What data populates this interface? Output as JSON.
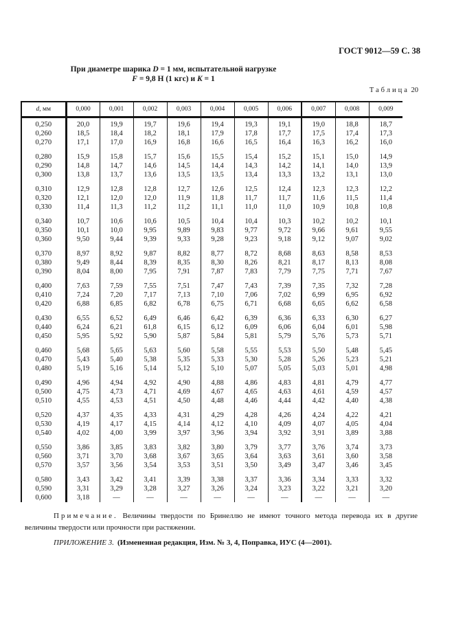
{
  "header": {
    "gost": "ГОСТ 9012—59 С. 38"
  },
  "title": {
    "line1_pre": "При диаметре шарика ",
    "line1_var": "D",
    "line1_post": " = 1 мм, испытательной нагрузке",
    "line2_var1": "F",
    "line2_mid": " = 9,8 Н (1 кгс) и ",
    "line2_var2": "K",
    "line2_post": " = 1"
  },
  "table_label": {
    "word": "Таблица",
    "number": "20"
  },
  "table": {
    "header_d_italic": "d",
    "header_d_rest": ", мм",
    "headers": [
      "0,000",
      "0,001",
      "0,002",
      "0,003",
      "0,004",
      "0,005",
      "0,006",
      "0,007",
      "0,008",
      "0,009"
    ],
    "groups": [
      [
        [
          "0,250",
          "20,0",
          "19,9",
          "19,7",
          "19,6",
          "19,4",
          "19,3",
          "19,1",
          "19,0",
          "18,8",
          "18,7"
        ],
        [
          "0,260",
          "18,5",
          "18,4",
          "18,2",
          "18,1",
          "17,9",
          "17,8",
          "17,7",
          "17,5",
          "17,4",
          "17,3"
        ],
        [
          "0,270",
          "17,1",
          "17,0",
          "16,9",
          "16,8",
          "16,6",
          "16,5",
          "16,4",
          "16,3",
          "16,2",
          "16,0"
        ]
      ],
      [
        [
          "0,280",
          "15,9",
          "15,8",
          "15,7",
          "15,6",
          "15,5",
          "15,4",
          "15,2",
          "15,1",
          "15,0",
          "14,9"
        ],
        [
          "0,290",
          "14,8",
          "14,7",
          "14,6",
          "14,5",
          "14,4",
          "14,3",
          "14,2",
          "14,1",
          "14,0",
          "13,9"
        ],
        [
          "0,300",
          "13,8",
          "13,7",
          "13,6",
          "13,5",
          "13,5",
          "13,4",
          "13,3",
          "13,2",
          "13,1",
          "13,0"
        ]
      ],
      [
        [
          "0,310",
          "12,9",
          "12,8",
          "12,8",
          "12,7",
          "12,6",
          "12,5",
          "12,4",
          "12,3",
          "12,3",
          "12,2"
        ],
        [
          "0,320",
          "12,1",
          "12,0",
          "12,0",
          "11,9",
          "11,8",
          "11,7",
          "11,7",
          "11,6",
          "11,5",
          "11,4"
        ],
        [
          "0,330",
          "11,4",
          "11,3",
          "11,2",
          "11,2",
          "11,1",
          "11,0",
          "11,0",
          "10,9",
          "10,8",
          "10,8"
        ]
      ],
      [
        [
          "0,340",
          "10,7",
          "10,6",
          "10,6",
          "10,5",
          "10,4",
          "10,4",
          "10,3",
          "10,2",
          "10,2",
          "10,1"
        ],
        [
          "0,350",
          "10,1",
          "10,0",
          "9,95",
          "9,89",
          "9,83",
          "9,77",
          "9,72",
          "9,66",
          "9,61",
          "9,55"
        ],
        [
          "0,360",
          "9,50",
          "9,44",
          "9,39",
          "9,33",
          "9,28",
          "9,23",
          "9,18",
          "9,12",
          "9,07",
          "9,02"
        ]
      ],
      [
        [
          "0,370",
          "8,97",
          "8,92",
          "9,87",
          "8,82",
          "8,77",
          "8,72",
          "8,68",
          "8,63",
          "8,58",
          "8,53"
        ],
        [
          "0,380",
          "9,49",
          "8,44",
          "8,39",
          "8,35",
          "8,30",
          "8,26",
          "8,21",
          "8,17",
          "8,13",
          "8,08"
        ],
        [
          "0,390",
          "8,04",
          "8,00",
          "7,95",
          "7,91",
          "7,87",
          "7,83",
          "7,79",
          "7,75",
          "7,71",
          "7,67"
        ]
      ],
      [
        [
          "0,400",
          "7,63",
          "7,59",
          "7,55",
          "7,51",
          "7,47",
          "7,43",
          "7,39",
          "7,35",
          "7,32",
          "7,28"
        ],
        [
          "0,410",
          "7,24",
          "7,20",
          "7,17",
          "7,13",
          "7,10",
          "7,06",
          "7,02",
          "6,99",
          "6,95",
          "6,92"
        ],
        [
          "0,420",
          "6,88",
          "6,85",
          "6,82",
          "6,78",
          "6,75",
          "6,71",
          "6,68",
          "6,65",
          "6,62",
          "6,58"
        ]
      ],
      [
        [
          "0,430",
          "6,55",
          "6,52",
          "6,49",
          "6,46",
          "6,42",
          "6,39",
          "6,36",
          "6,33",
          "6,30",
          "6,27"
        ],
        [
          "0,440",
          "6,24",
          "6,21",
          "61,8",
          "6,15",
          "6,12",
          "6,09",
          "6,06",
          "6,04",
          "6,01",
          "5,98"
        ],
        [
          "0,450",
          "5,95",
          "5,92",
          "5,90",
          "5,87",
          "5,84",
          "5,81",
          "5,79",
          "5,76",
          "5,73",
          "5,71"
        ]
      ],
      [
        [
          "0,460",
          "5,68",
          "5,65",
          "5,63",
          "5,60",
          "5,58",
          "5,55",
          "5,53",
          "5,50",
          "5,48",
          "5,45"
        ],
        [
          "0,470",
          "5,43",
          "5,40",
          "5,38",
          "5,35",
          "5,33",
          "5,30",
          "5,28",
          "5,26",
          "5,23",
          "5,21"
        ],
        [
          "0,480",
          "5,19",
          "5,16",
          "5,14",
          "5,12",
          "5,10",
          "5,07",
          "5,05",
          "5,03",
          "5,01",
          "4,98"
        ]
      ],
      [
        [
          "0,490",
          "4,96",
          "4,94",
          "4,92",
          "4,90",
          "4,88",
          "4,86",
          "4,83",
          "4,81",
          "4,79",
          "4,77"
        ],
        [
          "0,500",
          "4,75",
          "4,73",
          "4,71",
          "4,69",
          "4,67",
          "4,65",
          "4,63",
          "4,61",
          "4,59",
          "4,57"
        ],
        [
          "0,510",
          "4,55",
          "4,53",
          "4,51",
          "4,50",
          "4,48",
          "4,46",
          "4,44",
          "4,42",
          "4,40",
          "4,38"
        ]
      ],
      [
        [
          "0,520",
          "4,37",
          "4,35",
          "4,33",
          "4,31",
          "4,29",
          "4,28",
          "4,26",
          "4,24",
          "4,22",
          "4,21"
        ],
        [
          "0,530",
          "4,19",
          "4,17",
          "4,15",
          "4,14",
          "4,12",
          "4,10",
          "4,09",
          "4,07",
          "4,05",
          "4,04"
        ],
        [
          "0,540",
          "4,02",
          "4,00",
          "3,99",
          "3,97",
          "3,96",
          "3,94",
          "3,92",
          "3,91",
          "3,89",
          "3,88"
        ]
      ],
      [
        [
          "0,550",
          "3,86",
          "3,85",
          "3,83",
          "3,82",
          "3,80",
          "3,79",
          "3,77",
          "3,76",
          "3,74",
          "3,73"
        ],
        [
          "0,560",
          "3,71",
          "3,70",
          "3,68",
          "3,67",
          "3,65",
          "3,64",
          "3,63",
          "3,61",
          "3,60",
          "3,58"
        ],
        [
          "0,570",
          "3,57",
          "3,56",
          "3,54",
          "3,53",
          "3,51",
          "3,50",
          "3,49",
          "3,47",
          "3,46",
          "3,45"
        ]
      ],
      [
        [
          "0,580",
          "3,43",
          "3,42",
          "3,41",
          "3,39",
          "3,38",
          "3,37",
          "3,36",
          "3,34",
          "3,33",
          "3,32"
        ],
        [
          "0,590",
          "3,31",
          "3,29",
          "3,28",
          "3,27",
          "3,26",
          "3,24",
          "3,23",
          "3,22",
          "3,21",
          "3,20"
        ],
        [
          "0,600",
          "3,18",
          "—",
          "—",
          "—",
          "—",
          "—",
          "—",
          "—",
          "—",
          "—"
        ]
      ]
    ]
  },
  "note": {
    "label": "Примечание.",
    "text": " Величины твердости по Бринеллю не имеют точного метода перевода их в другие величины твердости или прочности при растяжении."
  },
  "appendix": {
    "italic_part": "ПРИЛОЖЕНИЕ 3.",
    "bold_part": "(Измененная редакция, Изм. № 3, 4, Поправка, ИУС (4—2001)."
  }
}
